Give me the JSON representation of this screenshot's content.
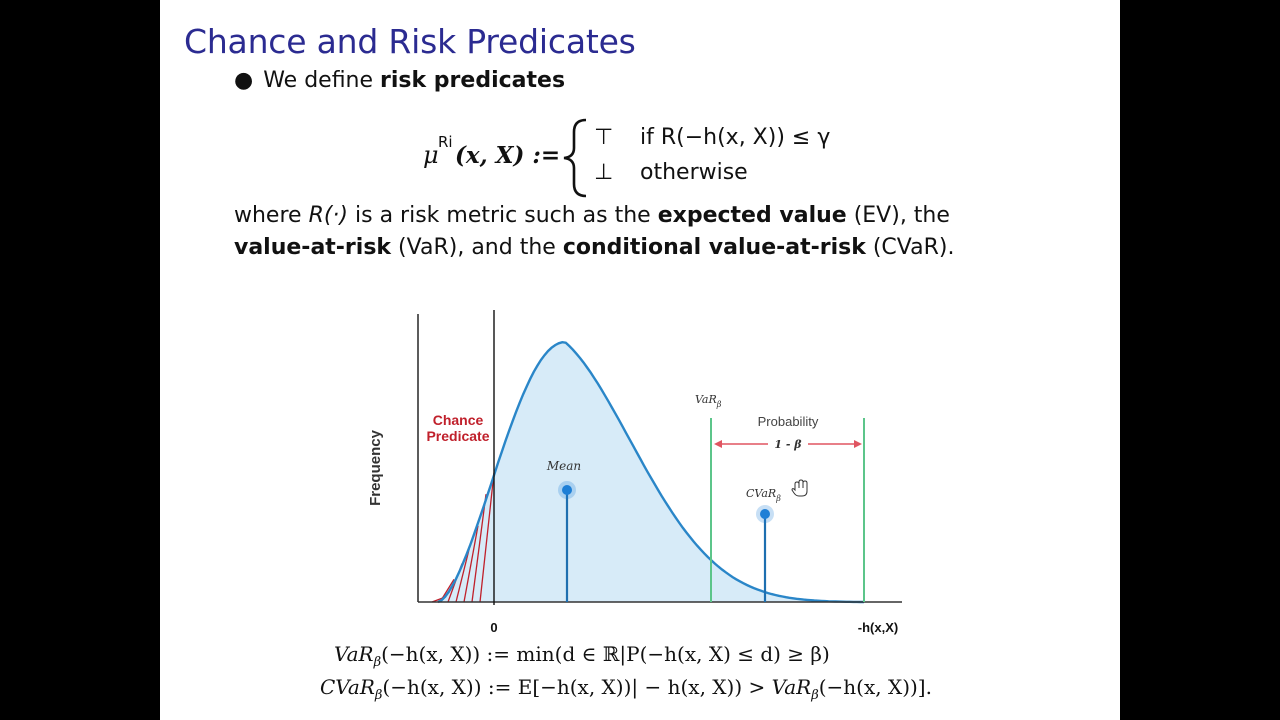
{
  "title": "Chance and Risk Predicates",
  "bullet": {
    "prefix": "We define",
    "bold": "risk predicates"
  },
  "formula": {
    "lhs_symbol": "μ",
    "lhs_sup": "Ri",
    "lhs_args": "(x, X) :=",
    "case1_symbol": "⊤",
    "case1_condition": "if R(−h(x, X)) ≤ γ",
    "case2_symbol": "⊥",
    "case2_condition": "otherwise"
  },
  "where": {
    "p1": "where ",
    "r": "R(·)",
    "p2": " is a risk metric such as the ",
    "ev_bold": "expected value",
    "ev_abbr": " (EV), the",
    "var_bold": "value-at-risk",
    "var_abbr": " (VaR), and the ",
    "cvar_bold": "conditional value-at-risk",
    "cvar_abbr": " (CVaR)."
  },
  "chart_data": {
    "type": "area",
    "ylabel": "Frequency",
    "xlabel": "-h(x,X)",
    "x_tick_zero": "0",
    "annotations": {
      "chance_line1": "Chance",
      "chance_line2": "Predicate",
      "mean": "Mean",
      "var_label": "VaR",
      "var_sub": "β",
      "cvar_label": "CVaR",
      "cvar_sub": "β",
      "probability": "Probability",
      "one_minus_beta": "1 - β"
    },
    "colors": {
      "curve": "#2a86c8",
      "fill": "#d7ebf8",
      "chance": "#c0202b",
      "var_lines": "#5cc58a",
      "arrow": "#e05561",
      "points": "#1e7fd6"
    }
  },
  "var_definition": {
    "lhs": "VaR",
    "sub": "β",
    "rest": "(−h(x, X)) := min(d ∈ ℝ|P(−h(x, X) ≤ d) ≥ β)"
  },
  "cvar_definition": {
    "lhs": "CVaR",
    "sub": "β",
    "rest1": "(−h(x, X)) := E[−h(x, X))| − h(x, X)) > ",
    "rhs": "VaR",
    "sub2": "β",
    "rest2": "(−h(x, X))]."
  }
}
